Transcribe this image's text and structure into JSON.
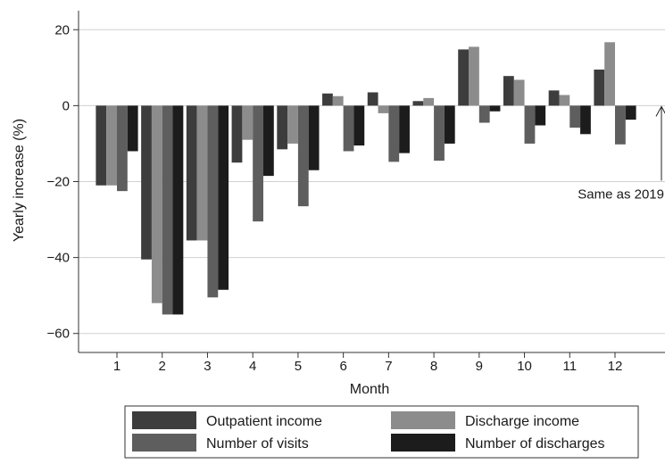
{
  "chart_data": {
    "type": "bar",
    "title": "",
    "xlabel": "Month",
    "ylabel": "Yearly increase (%)",
    "categories": [
      "1",
      "2",
      "3",
      "4",
      "5",
      "6",
      "7",
      "8",
      "9",
      "10",
      "11",
      "12"
    ],
    "ylim": [
      -65,
      25
    ],
    "yticks": [
      20,
      0,
      -20,
      -40,
      -60
    ],
    "ytick_labels": [
      "20",
      "0",
      "−20",
      "−40",
      "−60"
    ],
    "grid": "horizontal",
    "series": [
      {
        "name": "Outpatient income",
        "color": "#3d3d3d",
        "values": [
          -21,
          -40.5,
          -35.5,
          -15,
          -11.5,
          3.2,
          3.5,
          1.2,
          14.8,
          7.8,
          4,
          9.5
        ]
      },
      {
        "name": "Discharge income",
        "color": "#8c8c8c",
        "values": [
          -21,
          -52,
          -35.5,
          -9,
          -10,
          2.5,
          -2,
          2,
          15.5,
          6.8,
          2.8,
          16.7
        ]
      },
      {
        "name": "Number of visits",
        "color": "#5e5e5e",
        "values": [
          -22.5,
          -55,
          -50.5,
          -30.5,
          -26.5,
          -12,
          -14.8,
          -14.5,
          -4.5,
          -10,
          -5.8,
          -10.2
        ]
      },
      {
        "name": "Number of discharges",
        "color": "#1c1c1c",
        "values": [
          -12,
          -55,
          -48.5,
          -18.5,
          -17,
          -10.5,
          -12.5,
          -10,
          -1.5,
          -5.2,
          -7.5,
          -3.7
        ]
      }
    ],
    "annotation": {
      "text": "Same as 2019",
      "x": "12",
      "y": 0
    },
    "legend_position": "bottom"
  }
}
